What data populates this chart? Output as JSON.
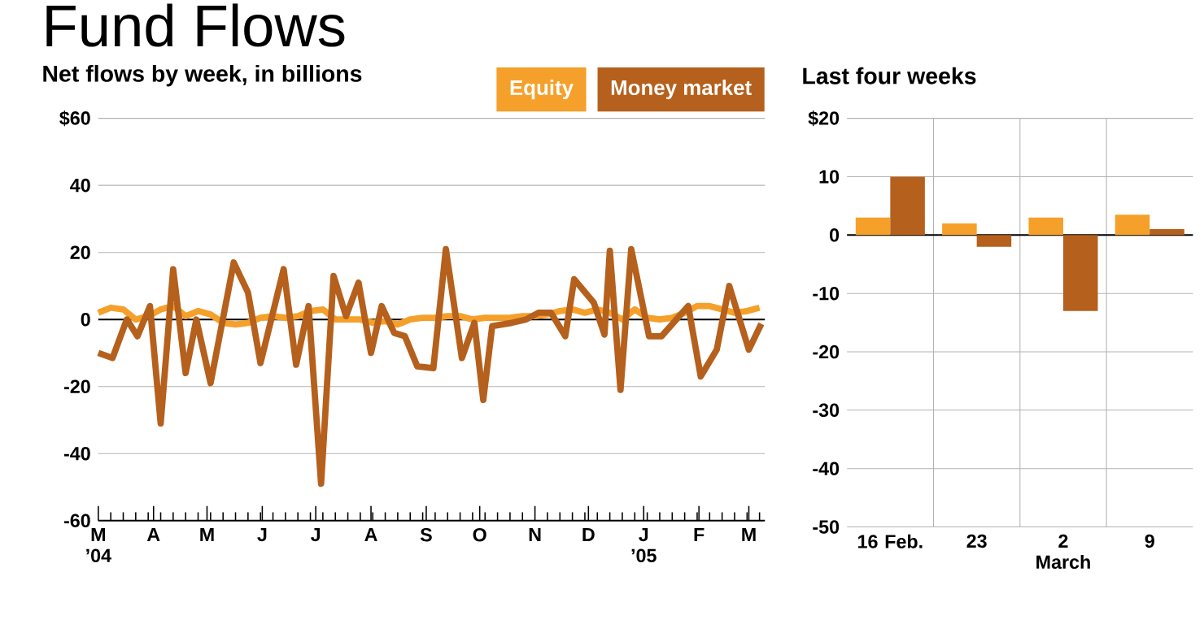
{
  "chart_data": [
    {
      "type": "line",
      "title": "Fund Flows",
      "subtitle": "Net flows by week, in billions",
      "xlim": [
        "2004-03-01",
        "2005-03-10"
      ],
      "ylim": [
        -60,
        60
      ],
      "yticks": [
        {
          "value": 60,
          "label": "$60"
        },
        40,
        20,
        0,
        -20,
        -40,
        -60
      ],
      "xticks": [
        {
          "value": "2004-03-01",
          "label": "M ’04"
        },
        {
          "value": "2004-04-01",
          "label": "A"
        },
        {
          "value": "2004-05-01",
          "label": "M"
        },
        {
          "value": "2004-06-01",
          "label": "J"
        },
        {
          "value": "2004-07-01",
          "label": "J"
        },
        {
          "value": "2004-08-01",
          "label": "A"
        },
        {
          "value": "2004-09-01",
          "label": "S"
        },
        {
          "value": "2004-10-01",
          "label": "O"
        },
        {
          "value": "2004-11-01",
          "label": "N"
        },
        {
          "value": "2004-12-01",
          "label": "D"
        },
        {
          "value": "2005-01-01",
          "label": "J ’05"
        },
        {
          "value": "2005-02-01",
          "label": "F"
        },
        {
          "value": "2005-03-01",
          "label": "M"
        },
        {
          "value": "2004-03-08",
          "label": null
        },
        {
          "value": "2004-03-15",
          "label": null
        },
        {
          "value": "2004-03-22",
          "label": null
        },
        {
          "value": "2004-03-29",
          "label": null
        },
        {
          "value": "2004-04-05",
          "label": null
        },
        {
          "value": "2004-04-12",
          "label": null
        },
        {
          "value": "2004-04-19",
          "label": null
        },
        {
          "value": "2004-04-26",
          "label": null
        },
        {
          "value": "2004-05-03",
          "label": null
        },
        {
          "value": "2004-05-10",
          "label": null
        },
        {
          "value": "2004-05-17",
          "label": null
        },
        {
          "value": "2004-05-24",
          "label": null
        },
        {
          "value": "2004-05-31",
          "label": null
        },
        {
          "value": "2004-06-07",
          "label": null
        },
        {
          "value": "2004-06-14",
          "label": null
        },
        {
          "value": "2004-06-21",
          "label": null
        },
        {
          "value": "2004-06-28",
          "label": null
        },
        {
          "value": "2004-07-05",
          "label": null
        },
        {
          "value": "2004-07-12",
          "label": null
        },
        {
          "value": "2004-07-19",
          "label": null
        },
        {
          "value": "2004-07-26",
          "label": null
        },
        {
          "value": "2004-08-02",
          "label": null
        },
        {
          "value": "2004-08-09",
          "label": null
        },
        {
          "value": "2004-08-16",
          "label": null
        },
        {
          "value": "2004-08-23",
          "label": null
        },
        {
          "value": "2004-08-30",
          "label": null
        },
        {
          "value": "2004-09-06",
          "label": null
        },
        {
          "value": "2004-09-13",
          "label": null
        },
        {
          "value": "2004-09-20",
          "label": null
        },
        {
          "value": "2004-09-27",
          "label": null
        },
        {
          "value": "2004-10-04",
          "label": null
        },
        {
          "value": "2004-10-11",
          "label": null
        },
        {
          "value": "2004-10-18",
          "label": null
        },
        {
          "value": "2004-10-25",
          "label": null
        },
        {
          "value": "2004-11-08",
          "label": null
        },
        {
          "value": "2004-11-15",
          "label": null
        },
        {
          "value": "2004-11-22",
          "label": null
        },
        {
          "value": "2004-11-29",
          "label": null
        },
        {
          "value": "2004-12-06",
          "label": null
        },
        {
          "value": "2004-12-13",
          "label": null
        },
        {
          "value": "2004-12-20",
          "label": null
        },
        {
          "value": "2004-12-27",
          "label": null
        },
        {
          "value": "2005-01-03",
          "label": null
        },
        {
          "value": "2005-01-10",
          "label": null
        },
        {
          "value": "2005-01-17",
          "label": null
        },
        {
          "value": "2005-01-24",
          "label": null
        },
        {
          "value": "2005-01-31",
          "label": null
        },
        {
          "value": "2005-02-07",
          "label": null
        },
        {
          "value": "2005-02-14",
          "label": null
        },
        {
          "value": "2005-02-21",
          "label": null
        },
        {
          "value": "2005-02-28",
          "label": null
        },
        {
          "value": "2005-03-07",
          "label": null
        }
      ],
      "grid": "y",
      "legend": "top right",
      "series": [
        {
          "name": "Equity",
          "color": "#f5a02a",
          "x": [
            "2004-03-01",
            "2004-03-08",
            "2004-03-15",
            "2004-03-22",
            "2004-03-29",
            "2004-04-05",
            "2004-04-12",
            "2004-04-19",
            "2004-04-26",
            "2004-05-03",
            "2004-05-10",
            "2004-05-17",
            "2004-05-24",
            "2004-05-31",
            "2004-06-07",
            "2004-06-14",
            "2004-06-21",
            "2004-06-28",
            "2004-07-05",
            "2004-07-12",
            "2004-07-19",
            "2004-07-26",
            "2004-08-02",
            "2004-08-09",
            "2004-08-16",
            "2004-08-23",
            "2004-08-30",
            "2004-09-06",
            "2004-09-13",
            "2004-09-20",
            "2004-09-27",
            "2004-10-04",
            "2004-10-11",
            "2004-10-18",
            "2004-10-25",
            "2004-11-01",
            "2004-11-08",
            "2004-11-15",
            "2004-11-22",
            "2004-11-29",
            "2004-12-06",
            "2004-12-13",
            "2004-12-20",
            "2004-12-27",
            "2005-01-03",
            "2005-01-10",
            "2005-01-17",
            "2005-01-24",
            "2005-01-31",
            "2005-02-07",
            "2005-02-14",
            "2005-02-21",
            "2005-02-28",
            "2005-03-07"
          ],
          "values": [
            2,
            3.5,
            3,
            0,
            1,
            3,
            4,
            1,
            2.5,
            1.5,
            -1,
            -1.5,
            -1,
            0.5,
            1,
            0.5,
            1,
            2.5,
            3,
            0,
            0,
            0,
            -1,
            -0.5,
            -1.5,
            0,
            0.5,
            0.5,
            1,
            1,
            0,
            0.5,
            0.5,
            0.5,
            1,
            1,
            1.5,
            2.5,
            3,
            2,
            3,
            2,
            0,
            3,
            0.5,
            0,
            0.5,
            2,
            4,
            4,
            3,
            2,
            2.5,
            3.5
          ]
        },
        {
          "name": "Money market",
          "color": "#b5601c",
          "x": [
            "2004-03-01",
            "2004-03-09",
            "2004-03-17",
            "2004-03-23",
            "2004-03-30",
            "2004-04-05",
            "2004-04-12",
            "2004-04-19",
            "2004-04-25",
            "2004-05-03",
            "2004-05-16",
            "2004-05-24",
            "2004-05-31",
            "2004-06-13",
            "2004-06-20",
            "2004-06-27",
            "2004-07-04",
            "2004-07-11",
            "2004-07-18",
            "2004-07-25",
            "2004-08-01",
            "2004-08-07",
            "2004-08-14",
            "2004-08-20",
            "2004-08-27",
            "2004-09-05",
            "2004-09-12",
            "2004-09-21",
            "2004-09-28",
            "2004-10-03",
            "2004-10-08",
            "2004-10-19",
            "2004-10-27",
            "2004-11-03",
            "2004-11-10",
            "2004-11-18",
            "2004-11-23",
            "2004-12-04",
            "2004-12-10",
            "2004-12-13",
            "2004-12-19",
            "2004-12-25",
            "2005-01-04",
            "2005-01-11",
            "2005-01-26",
            "2005-02-02",
            "2005-02-11",
            "2005-02-18",
            "2005-03-01",
            "2005-03-08"
          ],
          "values": [
            -10,
            -11.5,
            0,
            -5,
            4,
            -31,
            15,
            -16,
            0,
            -19,
            17,
            8,
            -13,
            15,
            -13.5,
            4,
            -49,
            13,
            1,
            11,
            -10,
            4,
            -4,
            -5,
            -14,
            -14.5,
            21,
            -11.5,
            -1,
            -24,
            -2,
            -1,
            0,
            2,
            2,
            -5,
            12,
            5,
            -4.5,
            20.5,
            -21,
            21,
            -5,
            -5,
            4,
            -17,
            -9,
            10,
            -9,
            -1.3
          ]
        }
      ]
    },
    {
      "type": "bar",
      "title": "Last four weeks",
      "categories": [
        "16 Feb.",
        "23",
        "2 March",
        "9"
      ],
      "ylim": [
        -50,
        20
      ],
      "yticks": [
        {
          "value": 20,
          "label": "$20"
        },
        10,
        0,
        -10,
        -20,
        -30,
        -40,
        -50
      ],
      "grid": true,
      "series": [
        {
          "color": "#f5a02a",
          "values": [
            3,
            2,
            3,
            3.5
          ]
        },
        {
          "color": "#b5601c",
          "values": [
            10,
            -2,
            -13,
            1
          ]
        }
      ]
    }
  ]
}
